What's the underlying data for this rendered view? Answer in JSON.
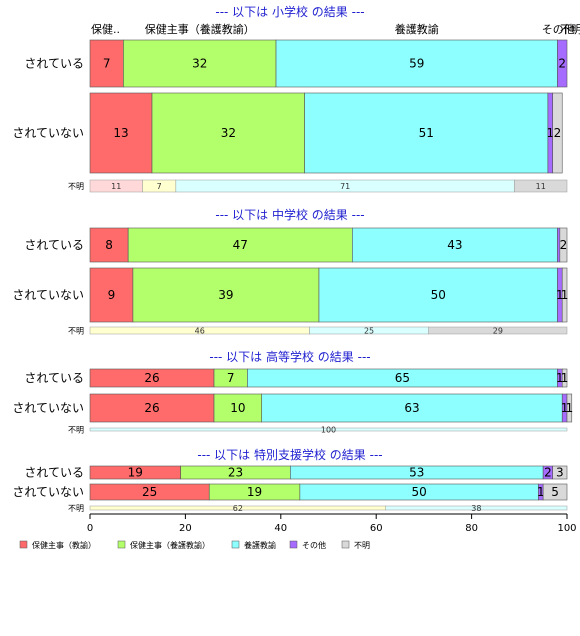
{
  "chart_data": {
    "type": "bar",
    "orientation": "horizontal-stacked-percent",
    "categories": [
      "保健主事（教諭）",
      "保健主事（養護教諭）",
      "養護教諭",
      "その他",
      "不明"
    ],
    "category_top_labels": [
      "保健..",
      "保健主事（養護教諭）",
      "養護教諭",
      "その他",
      "不明"
    ],
    "colors": [
      "#ff6b6b",
      "#b3ff6b",
      "#8effff",
      "#a66bff",
      "#d9d9d9"
    ],
    "unknown_colors": [
      "#ffd9d9",
      "#ffffd0",
      "#d9ffff",
      "#d9d9d9"
    ],
    "xlim": [
      0,
      100
    ],
    "xticks": [
      0,
      20,
      40,
      60,
      80,
      100
    ],
    "legend_position": "bottom-left",
    "sections": [
      {
        "title": "--- 以下は 小学校 の結果 ---",
        "rows": [
          {
            "label": "されている",
            "values": [
              7,
              32,
              59,
              2,
              0
            ],
            "labels": [
              "7",
              "32",
              "59",
              "2",
              ""
            ]
          },
          {
            "label": "されていない",
            "values": [
              13,
              32,
              51,
              1,
              2
            ],
            "labels": [
              "13",
              "32",
              "51",
              "1",
              "2"
            ]
          }
        ],
        "unknown_row": {
          "label": "不明",
          "values": [
            11,
            7,
            71,
            11
          ],
          "labels": [
            "11",
            "7",
            "71",
            "11"
          ]
        }
      },
      {
        "title": "--- 以下は 中学校 の結果 ---",
        "rows": [
          {
            "label": "されている",
            "values": [
              8,
              47,
              43,
              0.5,
              1.5
            ],
            "labels": [
              "8",
              "47",
              "43",
              "",
              "2"
            ]
          },
          {
            "label": "されていない",
            "values": [
              9,
              39,
              50,
              1,
              1
            ],
            "labels": [
              "9",
              "39",
              "50",
              "1",
              "1"
            ]
          }
        ],
        "unknown_row": {
          "label": "不明",
          "values": [
            0,
            46,
            25,
            29
          ],
          "labels": [
            "",
            "46",
            "25",
            "29"
          ]
        }
      },
      {
        "title": "--- 以下は 高等学校 の結果 ---",
        "rows": [
          {
            "label": "されている",
            "values": [
              26,
              7,
              65,
              1,
              1
            ],
            "labels": [
              "26",
              "7",
              "65",
              "1",
              "1"
            ]
          },
          {
            "label": "されていない",
            "values": [
              26,
              10,
              63,
              1,
              1
            ],
            "labels": [
              "26",
              "10",
              "63",
              "1",
              "1"
            ]
          }
        ],
        "unknown_row": {
          "label": "不明",
          "values": [
            0,
            0,
            100,
            0
          ],
          "labels": [
            "",
            "",
            "100",
            ""
          ]
        }
      },
      {
        "title": "--- 以下は 特別支援学校 の結果 ---",
        "rows": [
          {
            "label": "されている",
            "values": [
              19,
              23,
              53,
              2,
              3
            ],
            "labels": [
              "19",
              "23",
              "53",
              "2",
              "3"
            ]
          },
          {
            "label": "されていない",
            "values": [
              25,
              19,
              50,
              1,
              5
            ],
            "labels": [
              "25",
              "19",
              "50",
              "1",
              "5"
            ]
          }
        ],
        "unknown_row": {
          "label": "不明",
          "values": [
            0,
            62,
            38,
            0
          ],
          "labels": [
            "",
            "62",
            "38",
            ""
          ]
        }
      }
    ]
  }
}
